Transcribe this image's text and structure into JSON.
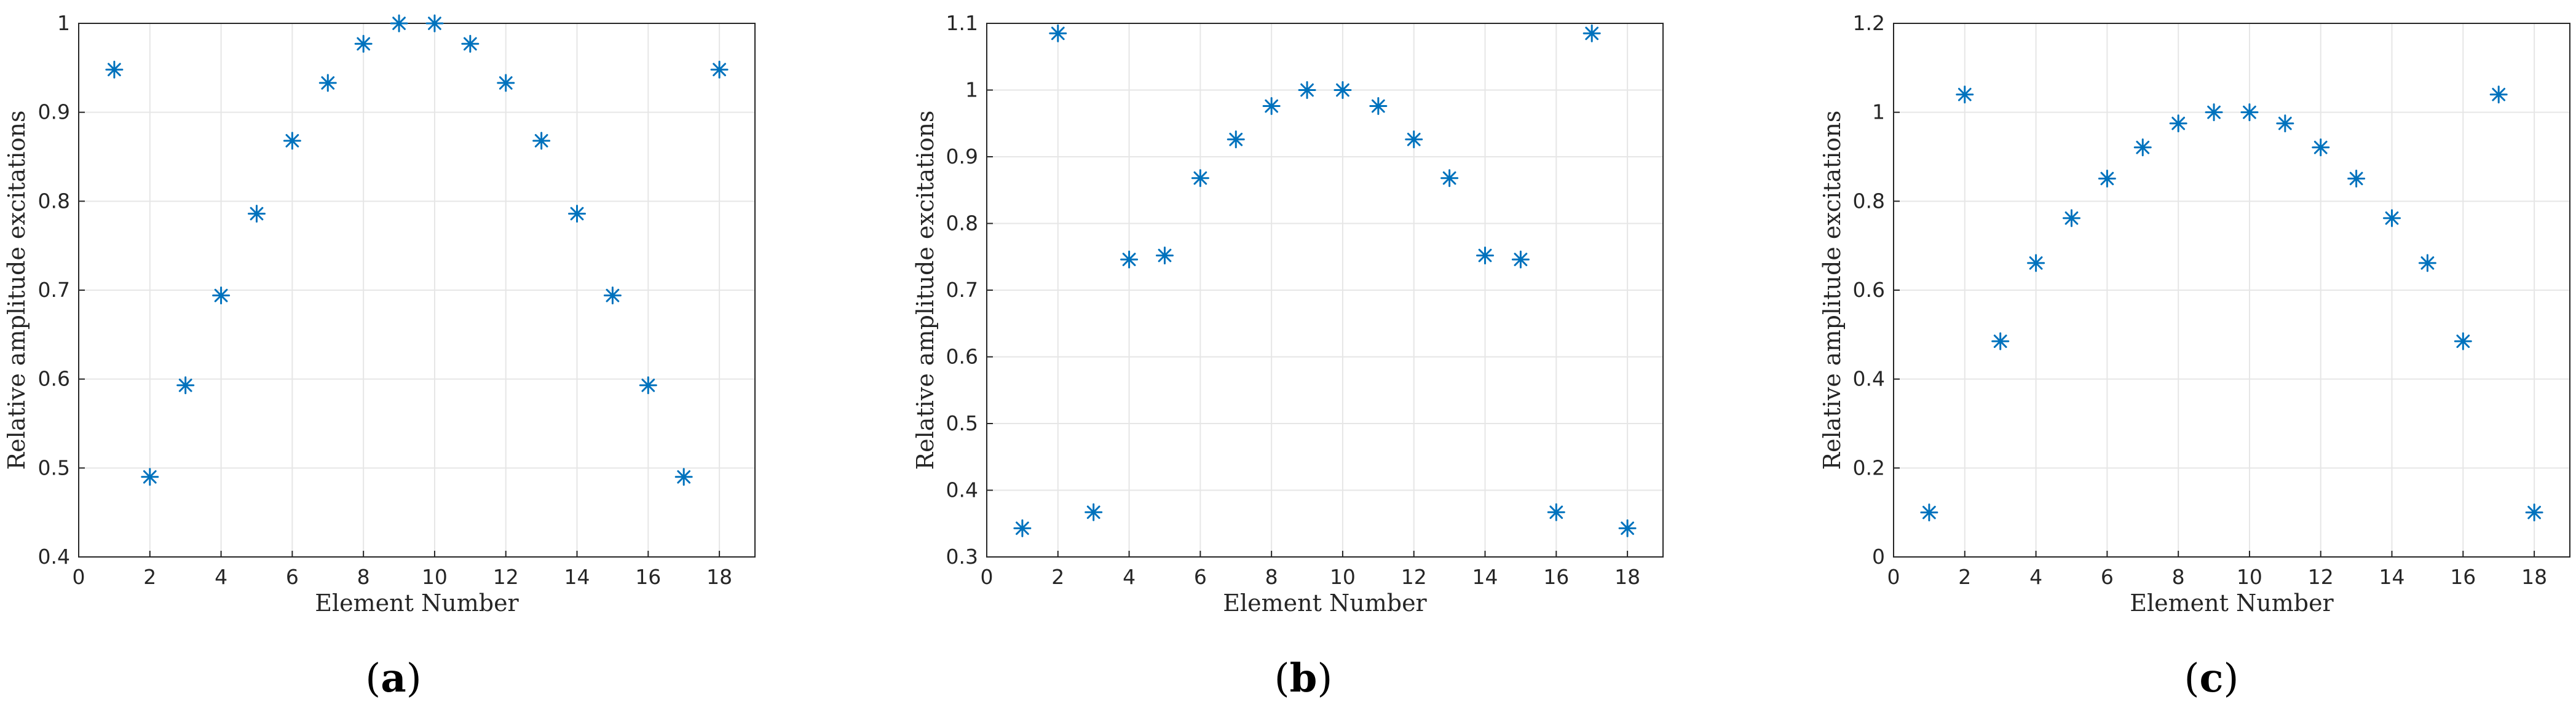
{
  "colors": {
    "marker": "#0072BD",
    "grid": "#e6e6e6",
    "axis": "#262626"
  },
  "chart_data": [
    {
      "type": "scatter",
      "panel_label": "a",
      "xlabel": "Element Number",
      "ylabel": "Relative amplitude excitations",
      "xlim": [
        0,
        19
      ],
      "ylim": [
        0.4,
        1.0
      ],
      "xticks": [
        0,
        2,
        4,
        6,
        8,
        10,
        12,
        14,
        16,
        18
      ],
      "yticks": [
        "0.4",
        "0.5",
        "0.6",
        "0.7",
        "0.8",
        "0.9",
        "1"
      ],
      "grid": true,
      "marker": "asterisk",
      "series": [
        {
          "x": [
            1,
            2,
            3,
            4,
            5,
            6,
            7,
            8,
            9,
            10,
            11,
            12,
            13,
            14,
            15,
            16,
            17,
            18
          ],
          "y": [
            0.948,
            0.49,
            0.593,
            0.694,
            0.786,
            0.868,
            0.933,
            0.977,
            1.0,
            1.0,
            0.977,
            0.933,
            0.868,
            0.786,
            0.694,
            0.593,
            0.49,
            0.948
          ]
        }
      ]
    },
    {
      "type": "scatter",
      "panel_label": "b",
      "xlabel": "Element Number",
      "ylabel": "Relative amplitude excitations",
      "xlim": [
        0,
        19
      ],
      "ylim": [
        0.3,
        1.1
      ],
      "xticks": [
        0,
        2,
        4,
        6,
        8,
        10,
        12,
        14,
        16,
        18
      ],
      "yticks": [
        "0.3",
        "0.4",
        "0.5",
        "0.6",
        "0.7",
        "0.8",
        "0.9",
        "1",
        "1.1"
      ],
      "grid": true,
      "marker": "asterisk",
      "series": [
        {
          "x": [
            1,
            2,
            3,
            4,
            5,
            6,
            7,
            8,
            9,
            10,
            11,
            12,
            13,
            14,
            15,
            16,
            17,
            18
          ],
          "y": [
            0.343,
            1.085,
            0.367,
            0.746,
            0.752,
            0.868,
            0.926,
            0.976,
            1.0,
            1.0,
            0.976,
            0.926,
            0.868,
            0.752,
            0.746,
            0.367,
            1.085,
            0.343
          ]
        }
      ]
    },
    {
      "type": "scatter",
      "panel_label": "c",
      "xlabel": "Element Number",
      "ylabel": "Relative amplitude excitations",
      "xlim": [
        0,
        19
      ],
      "ylim": [
        0,
        1.2
      ],
      "xticks": [
        0,
        2,
        4,
        6,
        8,
        10,
        12,
        14,
        16,
        18
      ],
      "yticks": [
        "0",
        "0.2",
        "0.4",
        "0.6",
        "0.8",
        "1",
        "1.2"
      ],
      "grid": true,
      "marker": "asterisk",
      "series": [
        {
          "x": [
            1,
            2,
            3,
            4,
            5,
            6,
            7,
            8,
            9,
            10,
            11,
            12,
            13,
            14,
            15,
            16,
            17,
            18
          ],
          "y": [
            0.1,
            1.04,
            0.485,
            0.661,
            0.762,
            0.851,
            0.921,
            0.975,
            1.0,
            1.0,
            0.975,
            0.921,
            0.851,
            0.762,
            0.661,
            0.485,
            1.04,
            0.1
          ]
        }
      ]
    }
  ]
}
